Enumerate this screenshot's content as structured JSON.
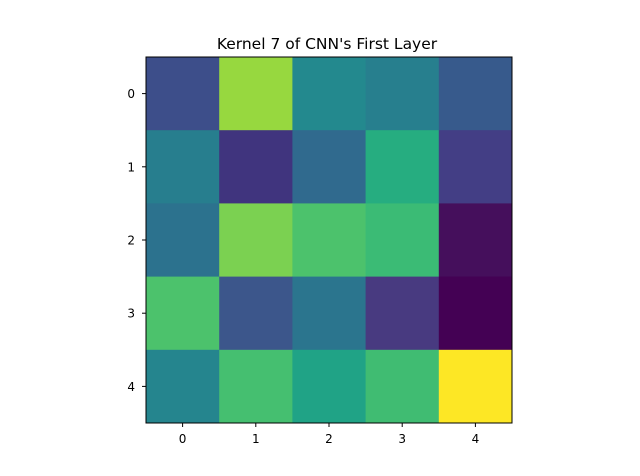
{
  "chart_data": {
    "type": "heatmap",
    "title": "Kernel 7 of CNN's First Layer",
    "xlabel": "",
    "ylabel": "",
    "x_tick_labels": [
      "0",
      "1",
      "2",
      "3",
      "4"
    ],
    "y_tick_labels": [
      "0",
      "1",
      "2",
      "3",
      "4"
    ],
    "colormap": "viridis",
    "value_range": [
      0,
      1
    ],
    "grid": false,
    "values": [
      [
        0.2,
        0.84,
        0.5,
        0.45,
        0.3
      ],
      [
        0.45,
        0.17,
        0.35,
        0.62,
        0.22
      ],
      [
        0.4,
        0.79,
        0.7,
        0.66,
        0.05
      ],
      [
        0.7,
        0.3,
        0.42,
        0.16,
        0.0
      ],
      [
        0.49,
        0.67,
        0.58,
        0.67,
        1.0
      ]
    ],
    "colors": [
      [
        "#3d4e8a",
        "#97d83f",
        "#23898e",
        "#277f8e",
        "#375a8c"
      ],
      [
        "#277e8e",
        "#40347e",
        "#306a8e",
        "#26ad80",
        "#433e85"
      ],
      [
        "#2c728e",
        "#7bd151",
        "#4cc26c",
        "#3bbb75",
        "#450f5c"
      ],
      [
        "#4cc26c",
        "#3c568b",
        "#2b758e",
        "#483a80",
        "#440154"
      ],
      [
        "#25858e",
        "#45bf70",
        "#20a386",
        "#40bc72",
        "#fde725"
      ]
    ]
  }
}
